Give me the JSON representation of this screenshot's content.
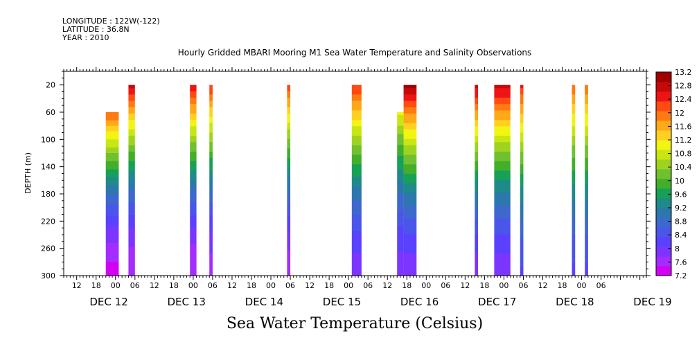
{
  "header": {
    "longitude": "LONGITUDE : 122W(-122)",
    "latitude": "LATITUDE : 36.8N",
    "year": "YEAR : 2010"
  },
  "chart_data": {
    "type": "heatmap",
    "title": "Hourly Gridded MBARI Mooring M1 Sea Water Temperature and Salinity Observations",
    "xlabel": "",
    "ylabel": "DEPTH (m)",
    "colorbar_label": "Sea Water Temperature (Celsius)",
    "x_hour_ticks": [
      "12",
      "18",
      "00",
      "06",
      "12",
      "18",
      "00",
      "06",
      "12",
      "18",
      "00",
      "06",
      "12",
      "18",
      "00",
      "06",
      "12",
      "18",
      "00",
      "06",
      "12",
      "18",
      "00",
      "06",
      "12",
      "18",
      "00",
      "06"
    ],
    "x_day_labels": [
      "DEC 12",
      "DEC 13",
      "DEC 14",
      "DEC 15",
      "DEC 16",
      "DEC 17",
      "DEC 18",
      "DEC 19"
    ],
    "xlim_hours": [
      -16,
      164
    ],
    "y_ticks": [
      20,
      60,
      100,
      140,
      180,
      220,
      260,
      300
    ],
    "ylim": [
      300,
      0
    ],
    "y_inverted": true,
    "colorbar_levels": [
      7.2,
      7.6,
      8,
      8.4,
      8.8,
      9.2,
      9.6,
      10,
      10.4,
      10.8,
      11.2,
      11.6,
      12,
      12.4,
      12.8,
      13.2
    ],
    "colorbar_colors": [
      "#d400f4",
      "#a42cff",
      "#7c35ff",
      "#5a41ff",
      "#4a56ea",
      "#3d68cd",
      "#2c78ac",
      "#1f8a89",
      "#16a058",
      "#42ae2a",
      "#70c030",
      "#9ed41f",
      "#c8e612",
      "#f2f412",
      "#ffd020",
      "#ffa818",
      "#ff7a10",
      "#ff4a12",
      "#ee1414",
      "#c80808",
      "#a00000"
    ],
    "colorbar_tick_labels": [
      "7.2",
      "7.6",
      "8",
      "8.4",
      "8.8",
      "9.2",
      "9.6",
      "10",
      "10.4",
      "10.8",
      "11.2",
      "11.6",
      "12",
      "12.4",
      "12.8",
      "13.2"
    ],
    "profiles": [
      {
        "start_hour": -3.0,
        "end_hour": 1.0,
        "top_depth": 60,
        "bottom_depth": 300,
        "surface_temp": 12.1,
        "bottom_temp": 7.4
      },
      {
        "start_hour": 4.0,
        "end_hour": 6.0,
        "top_depth": 20,
        "bottom_depth": 300,
        "surface_temp": 12.7,
        "bottom_temp": 7.5
      },
      {
        "start_hour": 23.0,
        "end_hour": 25.0,
        "top_depth": 20,
        "bottom_depth": 300,
        "surface_temp": 12.6,
        "bottom_temp": 7.5
      },
      {
        "start_hour": 29.0,
        "end_hour": 30.0,
        "top_depth": 20,
        "bottom_depth": 300,
        "surface_temp": 12.4,
        "bottom_temp": 7.6
      },
      {
        "start_hour": 53.0,
        "end_hour": 54.0,
        "top_depth": 20,
        "bottom_depth": 300,
        "surface_temp": 12.3,
        "bottom_temp": 7.6
      },
      {
        "start_hour": 73.0,
        "end_hour": 76.0,
        "top_depth": 20,
        "bottom_depth": 300,
        "surface_temp": 12.4,
        "bottom_temp": 7.9
      },
      {
        "start_hour": 89.0,
        "end_hour": 93.0,
        "top_depth": 20,
        "bottom_depth": 300,
        "surface_temp": 13.0,
        "bottom_temp": 7.9
      },
      {
        "start_hour": 87.0,
        "end_hour": 89.0,
        "top_depth": 60,
        "bottom_depth": 300,
        "surface_temp": 11.0,
        "bottom_temp": 7.9
      },
      {
        "start_hour": 111.0,
        "end_hour": 112.0,
        "top_depth": 20,
        "bottom_depth": 300,
        "surface_temp": 12.8,
        "bottom_temp": 7.9
      },
      {
        "start_hour": 117.0,
        "end_hour": 122.0,
        "top_depth": 20,
        "bottom_depth": 300,
        "surface_temp": 12.8,
        "bottom_temp": 7.9
      },
      {
        "start_hour": 125.0,
        "end_hour": 126.0,
        "top_depth": 20,
        "bottom_depth": 300,
        "surface_temp": 12.4,
        "bottom_temp": 8.3
      },
      {
        "start_hour": 141.0,
        "end_hour": 142.0,
        "top_depth": 20,
        "bottom_depth": 300,
        "surface_temp": 12.1,
        "bottom_temp": 8.3
      },
      {
        "start_hour": 145.0,
        "end_hour": 146.0,
        "top_depth": 20,
        "bottom_depth": 300,
        "surface_temp": 12.1,
        "bottom_temp": 8.3
      }
    ]
  }
}
